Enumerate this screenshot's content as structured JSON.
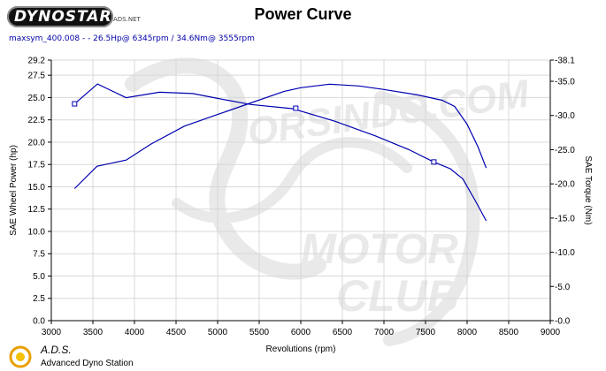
{
  "header": {
    "logo_text": "DYNOSTAR",
    "logo_sub": "ADS.NET",
    "title": "Power Curve",
    "subtitle": "maxsym_400.008 -  - 26.5Hp@ 6345rpm / 34.6Nm@ 3555rpm"
  },
  "footer": {
    "ads_title": "A.D.S.",
    "ads_subtitle": "Advanced Dyno Station"
  },
  "watermark": {
    "text_1": "JORSINDO.COM",
    "text_2": "MOTOR",
    "text_3": "CLUB"
  },
  "colors": {
    "curve": "#0000b0",
    "grid": "#d8d8d8",
    "axis_text": "#000000"
  },
  "chart_data": {
    "type": "line",
    "title": "Power Curve",
    "xlabel": "Revolutions (rpm)",
    "ylabel": "SAE Wheel Power (hp)",
    "y2label": "SAE Torque (Nm)",
    "xlim": [
      3000,
      9000
    ],
    "ylim": [
      0.0,
      29.2
    ],
    "y2lim": [
      0.0,
      38.1
    ],
    "x_ticks": [
      "3000",
      "3500",
      "4000",
      "4500",
      "5000",
      "5500",
      "6000",
      "6500",
      "7000",
      "7500",
      "8000",
      "8500",
      "9000"
    ],
    "y_ticks": [
      "0.0",
      "2.5",
      "5.0",
      "7.5",
      "10.0",
      "12.5",
      "15.0",
      "17.5",
      "20.0",
      "22.5",
      "25.0",
      "27.5",
      "29.2"
    ],
    "y2_ticks": [
      "-0.0",
      "-5.0",
      "-10.0",
      "-15.0",
      "-20.0",
      "-25.0",
      "-30.0",
      "-35.0",
      "-38.1"
    ],
    "grid": true,
    "series": [
      {
        "name": "SAE Wheel Power (hp)",
        "axis": "left",
        "x": [
          3280,
          3550,
          3900,
          4200,
          4600,
          5000,
          5400,
          5800,
          6000,
          6345,
          6700,
          7000,
          7400,
          7700,
          7850,
          8000,
          8130,
          8230
        ],
        "y": [
          14.8,
          17.3,
          18.0,
          19.8,
          21.8,
          23.1,
          24.4,
          25.7,
          26.1,
          26.5,
          26.3,
          25.9,
          25.3,
          24.7,
          24.0,
          22.0,
          19.5,
          17.1
        ]
      },
      {
        "name": "SAE Torque (Nm)",
        "axis": "right",
        "x": [
          3280,
          3555,
          3900,
          4300,
          4700,
          5000,
          5400,
          5900,
          6400,
          6900,
          7300,
          7600,
          7800,
          7950,
          8100,
          8230
        ],
        "y": [
          31.7,
          34.6,
          32.6,
          33.4,
          33.2,
          32.5,
          31.6,
          31.0,
          29.2,
          27.0,
          25.0,
          23.2,
          22.2,
          20.7,
          17.5,
          14.6
        ]
      }
    ],
    "markers": [
      {
        "axis": "left",
        "x": 5940,
        "y": 23.8
      },
      {
        "axis": "right",
        "x": 3280,
        "y": 31.7
      },
      {
        "axis": "right",
        "x": 7600,
        "y": 23.2
      }
    ]
  }
}
